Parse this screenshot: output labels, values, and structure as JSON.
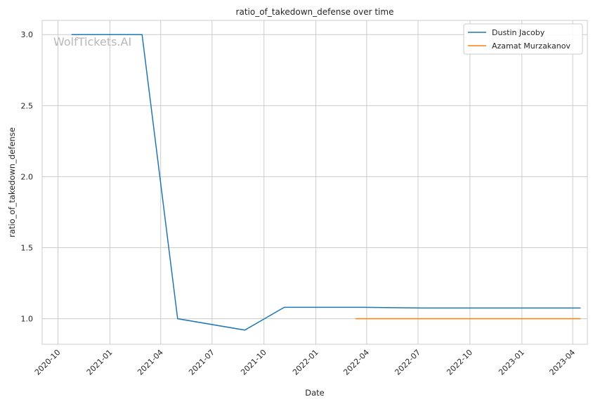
{
  "chart_data": {
    "type": "line",
    "title": "ratio_of_takedown_defense over time",
    "xlabel": "Date",
    "ylabel": "ratio_of_takedown_defense",
    "watermark": "WolfTickets.AI",
    "x_axis": "date",
    "xlim": [
      "2020-09-03",
      "2023-04-27"
    ],
    "ylim": [
      0.82,
      3.1
    ],
    "x_ticks": [
      "2020-10",
      "2021-01",
      "2021-04",
      "2021-07",
      "2021-10",
      "2022-01",
      "2022-04",
      "2022-07",
      "2022-10",
      "2023-01",
      "2023-04"
    ],
    "y_ticks": [
      "1.0",
      "1.5",
      "2.0",
      "2.5",
      "3.0"
    ],
    "grid": true,
    "legend_position": "top-right",
    "series": [
      {
        "name": "Dustin Jacoby",
        "color": "#1f77b4",
        "points": [
          {
            "x": "2020-10-25",
            "y": 3.0
          },
          {
            "x": "2021-02-27",
            "y": 3.0
          },
          {
            "x": "2021-05-01",
            "y": 1.0
          },
          {
            "x": "2021-08-28",
            "y": 0.92
          },
          {
            "x": "2021-11-06",
            "y": 1.08
          },
          {
            "x": "2022-03-26",
            "y": 1.08
          },
          {
            "x": "2022-07-09",
            "y": 1.075
          },
          {
            "x": "2023-04-15",
            "y": 1.075
          }
        ]
      },
      {
        "name": "Azamat Murzakanov",
        "color": "#ff7f0e",
        "points": [
          {
            "x": "2022-03-12",
            "y": 1.0
          },
          {
            "x": "2023-04-15",
            "y": 1.0
          }
        ]
      }
    ]
  }
}
